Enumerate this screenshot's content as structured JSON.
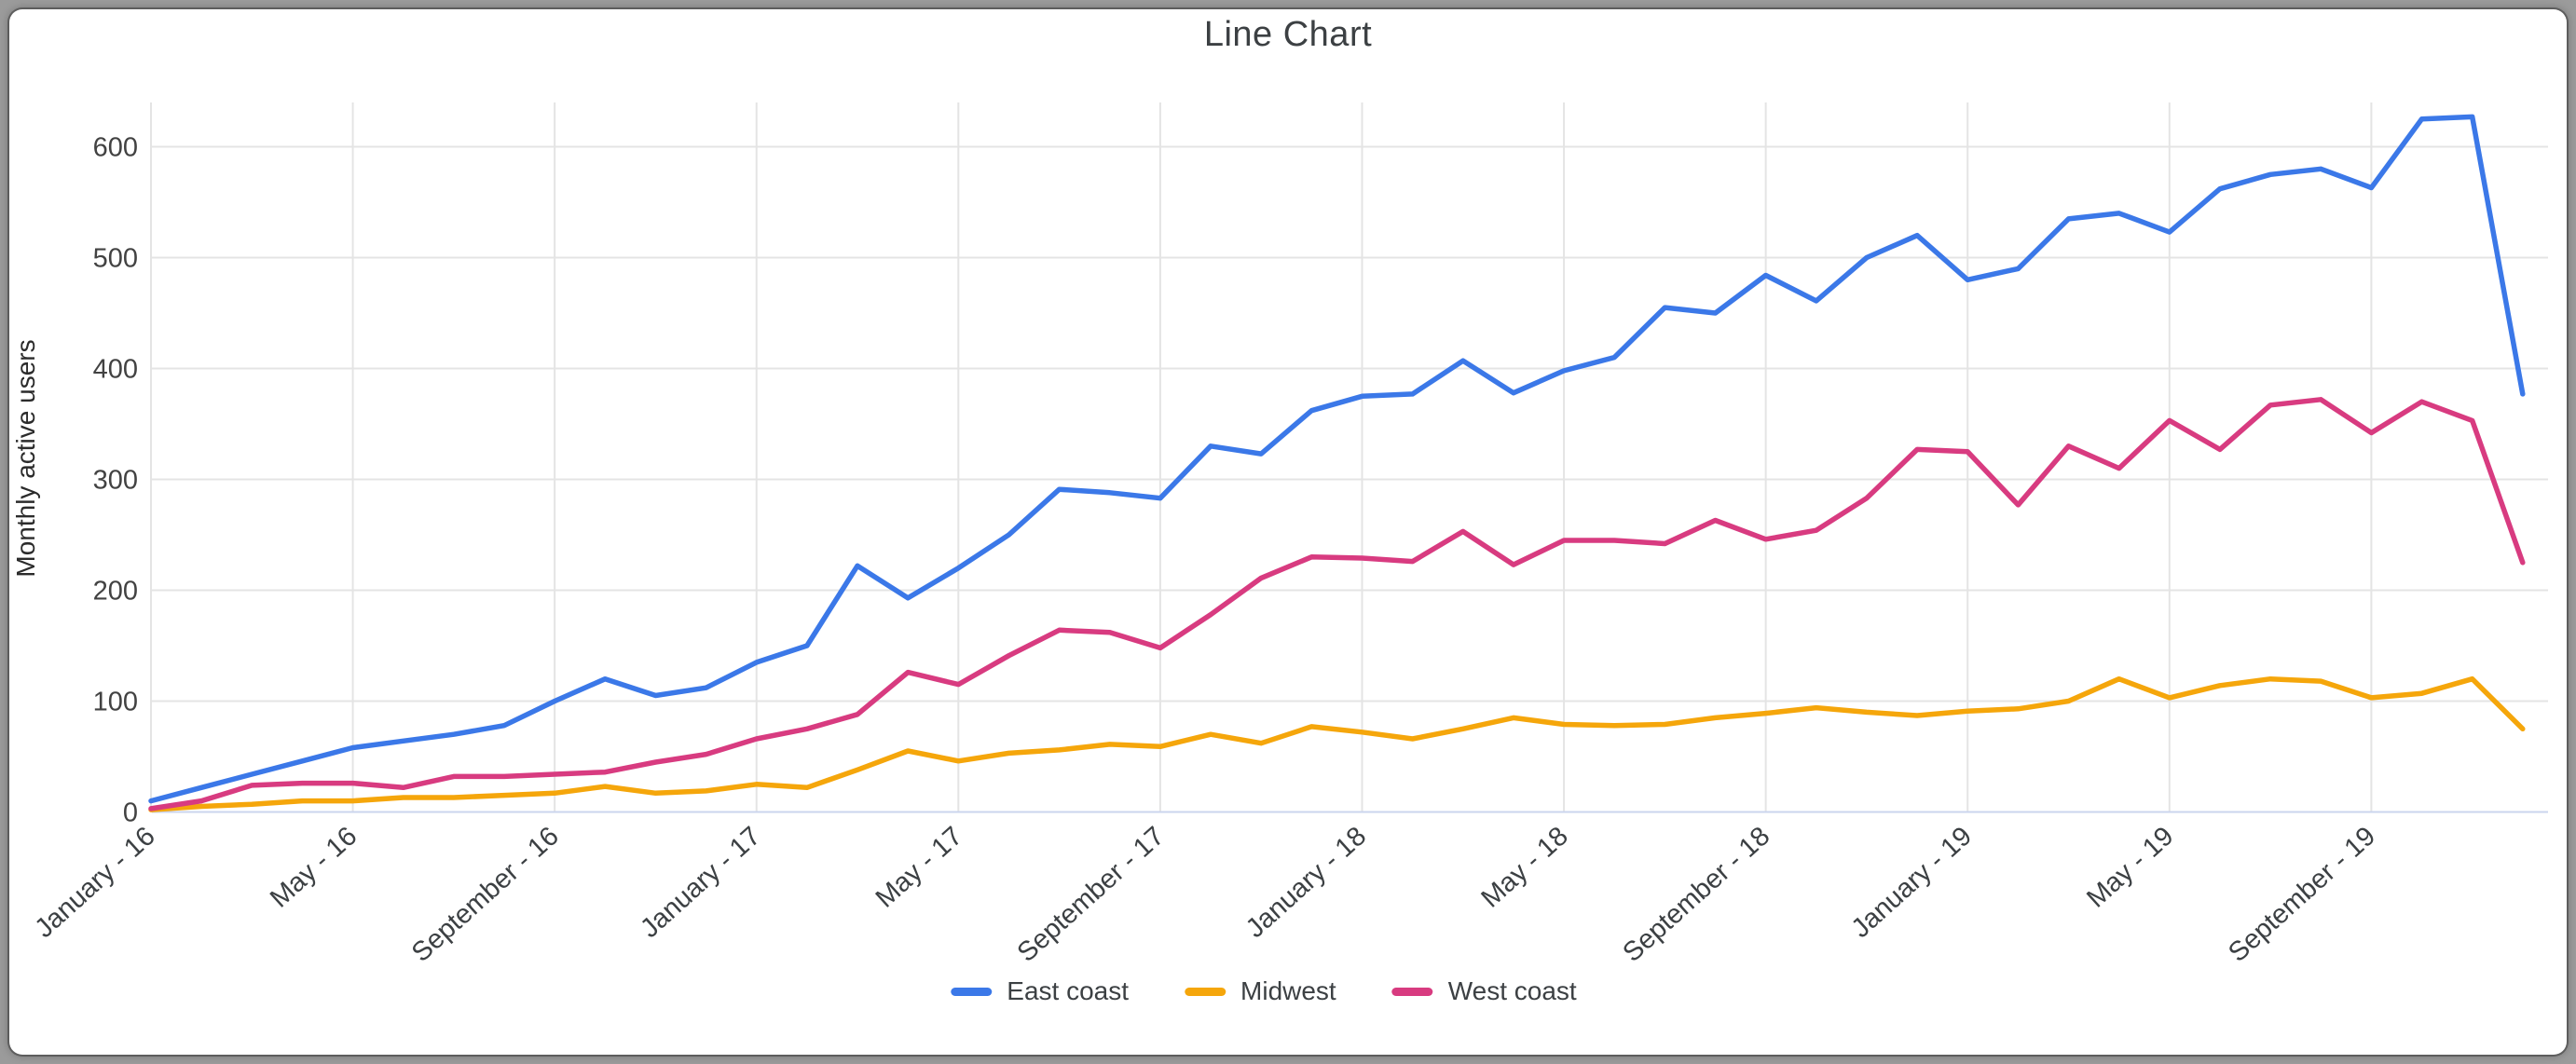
{
  "header": {
    "title": "Line Chart"
  },
  "chart_data": {
    "type": "line",
    "title": "Line Chart",
    "xlabel": "",
    "ylabel": "Monthly active users",
    "ylim": [
      0,
      640
    ],
    "yticks": [
      0,
      100,
      200,
      300,
      400,
      500,
      600
    ],
    "ytick_labels": [
      "0",
      "100",
      "200",
      "300",
      "400",
      "500",
      "600"
    ],
    "x_unit": "48 monthly points, January 2016 through December 2019",
    "x_tick_months": [
      0,
      4,
      8,
      12,
      16,
      20,
      24,
      28,
      32,
      36,
      40,
      44
    ],
    "x_tick_labels": [
      "January - 16",
      "May - 16",
      "September - 16",
      "January - 17",
      "May - 17",
      "September - 17",
      "January - 18",
      "May - 18",
      "September - 18",
      "January - 19",
      "May - 19",
      "September - 19"
    ],
    "grid": true,
    "legend_position": "bottom",
    "series": [
      {
        "name": "East coast",
        "color": "#3B78E8",
        "values": [
          10,
          22,
          34,
          46,
          58,
          64,
          70,
          78,
          100,
          120,
          105,
          112,
          135,
          150,
          222,
          193,
          220,
          250,
          291,
          288,
          283,
          330,
          323,
          362,
          375,
          377,
          407,
          378,
          398,
          410,
          455,
          450,
          484,
          461,
          500,
          520,
          480,
          490,
          535,
          540,
          523,
          562,
          575,
          580,
          563,
          625,
          627,
          377
        ]
      },
      {
        "name": "Midwest",
        "color": "#F5A60B",
        "values": [
          2,
          5,
          7,
          10,
          10,
          13,
          13,
          15,
          17,
          23,
          17,
          19,
          25,
          22,
          38,
          55,
          46,
          53,
          56,
          61,
          59,
          70,
          62,
          77,
          72,
          66,
          75,
          85,
          79,
          78,
          79,
          85,
          89,
          94,
          90,
          87,
          91,
          93,
          100,
          120,
          103,
          114,
          120,
          118,
          103,
          107,
          120,
          75
        ]
      },
      {
        "name": "West coast",
        "color": "#D83B80",
        "values": [
          3,
          10,
          24,
          26,
          26,
          22,
          32,
          32,
          34,
          36,
          45,
          52,
          66,
          75,
          88,
          126,
          115,
          141,
          164,
          162,
          148,
          178,
          211,
          230,
          229,
          226,
          253,
          223,
          245,
          245,
          242,
          263,
          246,
          254,
          283,
          327,
          325,
          277,
          330,
          310,
          353,
          327,
          367,
          372,
          342,
          370,
          353,
          225
        ]
      }
    ]
  },
  "colors": {
    "gridline": "#E4E4E4",
    "baseline": "#CBD5EE",
    "tick_text": "#424242",
    "title_text": "#3C4043",
    "frame_gray": "#9B9B9B"
  }
}
